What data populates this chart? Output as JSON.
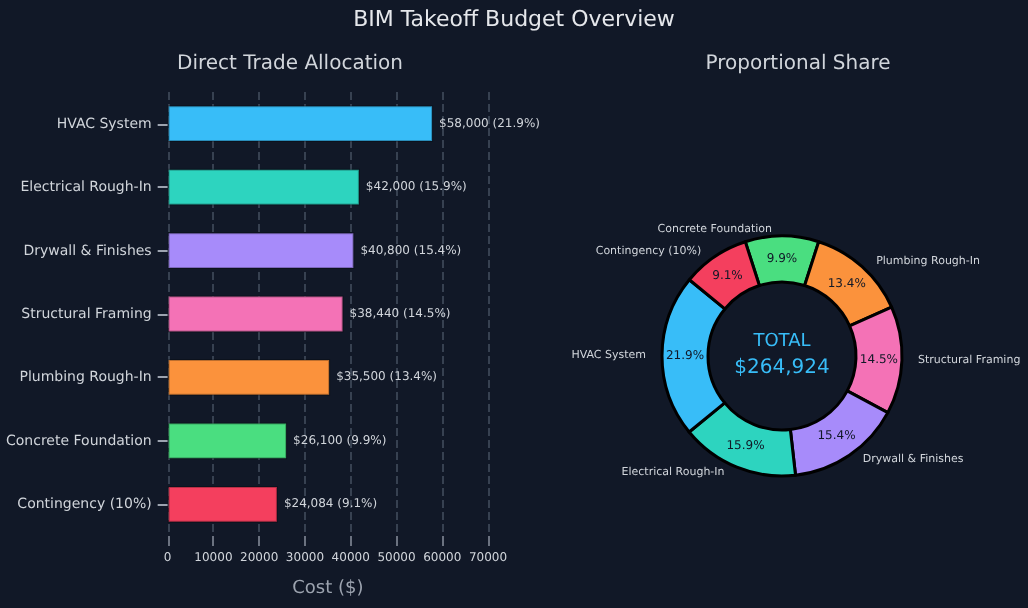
{
  "chart_data": [
    {
      "type": "bar",
      "title": "BIM Takeoff Budget Overview",
      "subtitle": "Direct Trade Allocation",
      "orientation": "horizontal",
      "xlabel": "Cost ($)",
      "categories": [
        "HVAC System",
        "Electrical Rough-In",
        "Drywall & Finishes",
        "Structural Framing",
        "Plumbing Rough-In",
        "Concrete Foundation",
        "Contingency (10%)"
      ],
      "values": [
        58000,
        42000,
        40800,
        38440,
        35500,
        26100,
        24084
      ],
      "colors": [
        "#38bdf8",
        "#2dd4bf",
        "#a78bfa",
        "#f472b6",
        "#fb923c",
        "#4ade80",
        "#f43f5e"
      ],
      "value_labels": [
        "$58,000 (21.9%)",
        "$42,000 (15.9%)",
        "$40,800 (15.4%)",
        "$38,440 (14.5%)",
        "$35,500 (13.4%)",
        "$26,100 (9.9%)",
        "$24,084 (9.1%)"
      ],
      "xlim": [
        0,
        70000
      ],
      "xticks": [
        0,
        10000,
        20000,
        30000,
        40000,
        50000,
        60000,
        70000
      ],
      "grid": "x"
    },
    {
      "type": "donut",
      "title": "Proportional Share",
      "categories": [
        "Concrete Foundation",
        "Plumbing Rough-In",
        "Structural Framing",
        "Drywall & Finishes",
        "Electrical Rough-In",
        "HVAC System",
        "Contingency (10%)"
      ],
      "values": [
        9.9,
        13.4,
        14.5,
        15.4,
        15.9,
        21.9,
        9.1
      ],
      "colors": [
        "#4ade80",
        "#fb923c",
        "#f472b6",
        "#a78bfa",
        "#2dd4bf",
        "#38bdf8",
        "#f43f5e"
      ],
      "value_labels": [
        "9.9%",
        "13.4%",
        "14.5%",
        "15.4%",
        "15.9%",
        "21.9%",
        "9.1%"
      ],
      "annotations": [
        "TOTAL",
        "$264,924"
      ]
    }
  ]
}
